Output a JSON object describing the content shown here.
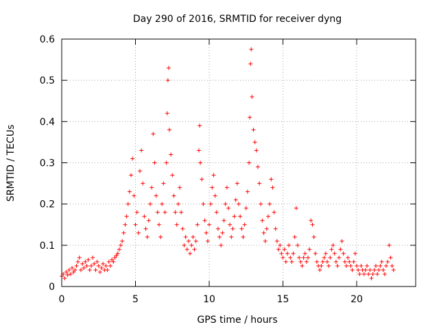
{
  "chart_data": {
    "type": "scatter",
    "title": "Day 290 of 2016, SRMTID for receiver dyng",
    "xlabel": "GPS time / hours",
    "ylabel": "SRMTID / TECUs",
    "xlim": [
      0,
      24
    ],
    "ylim": [
      0,
      0.6
    ],
    "xticks": [
      0,
      5,
      10,
      15,
      20
    ],
    "xtick_labels": [
      "0",
      "5",
      "10",
      "15",
      "20"
    ],
    "yticks": [
      0,
      0.1,
      0.2,
      0.3,
      0.4,
      0.5,
      0.6
    ],
    "ytick_labels": [
      "0",
      "0.1",
      "0.2",
      "0.3",
      "0.4",
      "0.5",
      "0.6"
    ],
    "grid": true,
    "marker": "+",
    "color": "#ff0000",
    "series": [
      {
        "name": "SRMTID",
        "points": [
          [
            0.0,
            0.025
          ],
          [
            0.1,
            0.03
          ],
          [
            0.2,
            0.02
          ],
          [
            0.3,
            0.035
          ],
          [
            0.4,
            0.028
          ],
          [
            0.5,
            0.04
          ],
          [
            0.6,
            0.03
          ],
          [
            0.7,
            0.045
          ],
          [
            0.8,
            0.035
          ],
          [
            0.9,
            0.04
          ],
          [
            1.0,
            0.05
          ],
          [
            1.1,
            0.06
          ],
          [
            1.2,
            0.07
          ],
          [
            1.3,
            0.04
          ],
          [
            1.4,
            0.055
          ],
          [
            1.5,
            0.045
          ],
          [
            1.6,
            0.06
          ],
          [
            1.7,
            0.05
          ],
          [
            1.8,
            0.065
          ],
          [
            1.9,
            0.04
          ],
          [
            2.0,
            0.05
          ],
          [
            2.1,
            0.07
          ],
          [
            2.2,
            0.055
          ],
          [
            2.3,
            0.04
          ],
          [
            2.4,
            0.06
          ],
          [
            2.5,
            0.05
          ],
          [
            2.6,
            0.035
          ],
          [
            2.7,
            0.045
          ],
          [
            2.8,
            0.055
          ],
          [
            2.9,
            0.04
          ],
          [
            3.0,
            0.05
          ],
          [
            3.1,
            0.04
          ],
          [
            3.2,
            0.06
          ],
          [
            3.3,
            0.05
          ],
          [
            3.4,
            0.065
          ],
          [
            3.5,
            0.06
          ],
          [
            3.6,
            0.07
          ],
          [
            3.7,
            0.075
          ],
          [
            3.8,
            0.08
          ],
          [
            3.9,
            0.09
          ],
          [
            4.0,
            0.1
          ],
          [
            4.1,
            0.11
          ],
          [
            4.2,
            0.13
          ],
          [
            4.3,
            0.15
          ],
          [
            4.4,
            0.17
          ],
          [
            4.5,
            0.2
          ],
          [
            4.6,
            0.23
          ],
          [
            4.7,
            0.27
          ],
          [
            4.8,
            0.31
          ],
          [
            4.9,
            0.22
          ],
          [
            5.0,
            0.15
          ],
          [
            5.1,
            0.18
          ],
          [
            5.2,
            0.13
          ],
          [
            5.3,
            0.28
          ],
          [
            5.4,
            0.33
          ],
          [
            5.5,
            0.25
          ],
          [
            5.6,
            0.17
          ],
          [
            5.7,
            0.14
          ],
          [
            5.8,
            0.12
          ],
          [
            5.9,
            0.16
          ],
          [
            6.0,
            0.2
          ],
          [
            6.1,
            0.24
          ],
          [
            6.2,
            0.37
          ],
          [
            6.3,
            0.3
          ],
          [
            6.4,
            0.22
          ],
          [
            6.5,
            0.18
          ],
          [
            6.6,
            0.15
          ],
          [
            6.7,
            0.12
          ],
          [
            6.8,
            0.2
          ],
          [
            6.9,
            0.25
          ],
          [
            7.0,
            0.18
          ],
          [
            7.1,
            0.3
          ],
          [
            7.15,
            0.42
          ],
          [
            7.2,
            0.5
          ],
          [
            7.25,
            0.53
          ],
          [
            7.3,
            0.38
          ],
          [
            7.4,
            0.32
          ],
          [
            7.5,
            0.27
          ],
          [
            7.6,
            0.22
          ],
          [
            7.7,
            0.18
          ],
          [
            7.8,
            0.15
          ],
          [
            7.9,
            0.2
          ],
          [
            8.0,
            0.24
          ],
          [
            8.1,
            0.18
          ],
          [
            8.2,
            0.14
          ],
          [
            8.3,
            0.1
          ],
          [
            8.4,
            0.12
          ],
          [
            8.5,
            0.09
          ],
          [
            8.6,
            0.11
          ],
          [
            8.7,
            0.08
          ],
          [
            8.8,
            0.1
          ],
          [
            8.9,
            0.12
          ],
          [
            9.0,
            0.09
          ],
          [
            9.1,
            0.11
          ],
          [
            9.2,
            0.15
          ],
          [
            9.3,
            0.33
          ],
          [
            9.35,
            0.39
          ],
          [
            9.4,
            0.3
          ],
          [
            9.5,
            0.26
          ],
          [
            9.6,
            0.2
          ],
          [
            9.7,
            0.16
          ],
          [
            9.8,
            0.13
          ],
          [
            9.9,
            0.11
          ],
          [
            10.0,
            0.15
          ],
          [
            10.1,
            0.2
          ],
          [
            10.2,
            0.24
          ],
          [
            10.3,
            0.27
          ],
          [
            10.4,
            0.22
          ],
          [
            10.5,
            0.18
          ],
          [
            10.6,
            0.14
          ],
          [
            10.7,
            0.12
          ],
          [
            10.8,
            0.1
          ],
          [
            10.9,
            0.13
          ],
          [
            11.0,
            0.16
          ],
          [
            11.1,
            0.2
          ],
          [
            11.2,
            0.24
          ],
          [
            11.3,
            0.19
          ],
          [
            11.4,
            0.15
          ],
          [
            11.5,
            0.12
          ],
          [
            11.6,
            0.14
          ],
          [
            11.7,
            0.17
          ],
          [
            11.8,
            0.21
          ],
          [
            11.9,
            0.25
          ],
          [
            12.0,
            0.2
          ],
          [
            12.1,
            0.17
          ],
          [
            12.2,
            0.14
          ],
          [
            12.3,
            0.12
          ],
          [
            12.4,
            0.15
          ],
          [
            12.5,
            0.19
          ],
          [
            12.6,
            0.23
          ],
          [
            12.7,
            0.3
          ],
          [
            12.75,
            0.41
          ],
          [
            12.8,
            0.54
          ],
          [
            12.85,
            0.575
          ],
          [
            12.9,
            0.46
          ],
          [
            13.0,
            0.38
          ],
          [
            13.1,
            0.35
          ],
          [
            13.2,
            0.33
          ],
          [
            13.3,
            0.29
          ],
          [
            13.4,
            0.25
          ],
          [
            13.5,
            0.2
          ],
          [
            13.6,
            0.16
          ],
          [
            13.7,
            0.13
          ],
          [
            13.8,
            0.11
          ],
          [
            13.9,
            0.14
          ],
          [
            14.0,
            0.17
          ],
          [
            14.1,
            0.2
          ],
          [
            14.2,
            0.26
          ],
          [
            14.3,
            0.24
          ],
          [
            14.4,
            0.18
          ],
          [
            14.5,
            0.14
          ],
          [
            14.6,
            0.11
          ],
          [
            14.7,
            0.09
          ],
          [
            14.8,
            0.1
          ],
          [
            14.9,
            0.08
          ],
          [
            15.0,
            0.07
          ],
          [
            15.1,
            0.09
          ],
          [
            15.2,
            0.06
          ],
          [
            15.3,
            0.08
          ],
          [
            15.4,
            0.1
          ],
          [
            15.5,
            0.07
          ],
          [
            15.6,
            0.06
          ],
          [
            15.7,
            0.08
          ],
          [
            15.8,
            0.12
          ],
          [
            15.9,
            0.19
          ],
          [
            16.0,
            0.1
          ],
          [
            16.1,
            0.07
          ],
          [
            16.2,
            0.06
          ],
          [
            16.3,
            0.05
          ],
          [
            16.4,
            0.07
          ],
          [
            16.5,
            0.08
          ],
          [
            16.6,
            0.06
          ],
          [
            16.7,
            0.07
          ],
          [
            16.8,
            0.09
          ],
          [
            16.9,
            0.16
          ],
          [
            17.0,
            0.15
          ],
          [
            17.1,
            0.12
          ],
          [
            17.2,
            0.08
          ],
          [
            17.3,
            0.06
          ],
          [
            17.4,
            0.05
          ],
          [
            17.5,
            0.04
          ],
          [
            17.6,
            0.05
          ],
          [
            17.7,
            0.06
          ],
          [
            17.8,
            0.07
          ],
          [
            17.9,
            0.08
          ],
          [
            18.0,
            0.06
          ],
          [
            18.1,
            0.05
          ],
          [
            18.2,
            0.07
          ],
          [
            18.3,
            0.09
          ],
          [
            18.4,
            0.1
          ],
          [
            18.5,
            0.08
          ],
          [
            18.6,
            0.06
          ],
          [
            18.7,
            0.05
          ],
          [
            18.8,
            0.07
          ],
          [
            18.9,
            0.09
          ],
          [
            19.0,
            0.11
          ],
          [
            19.1,
            0.08
          ],
          [
            19.2,
            0.06
          ],
          [
            19.3,
            0.05
          ],
          [
            19.4,
            0.07
          ],
          [
            19.5,
            0.06
          ],
          [
            19.6,
            0.05
          ],
          [
            19.7,
            0.04
          ],
          [
            19.8,
            0.06
          ],
          [
            19.9,
            0.08
          ],
          [
            20.0,
            0.05
          ],
          [
            20.1,
            0.04
          ],
          [
            20.2,
            0.03
          ],
          [
            20.3,
            0.05
          ],
          [
            20.4,
            0.04
          ],
          [
            20.5,
            0.03
          ],
          [
            20.6,
            0.04
          ],
          [
            20.7,
            0.05
          ],
          [
            20.8,
            0.03
          ],
          [
            20.9,
            0.04
          ],
          [
            21.0,
            0.02
          ],
          [
            21.1,
            0.03
          ],
          [
            21.2,
            0.04
          ],
          [
            21.3,
            0.05
          ],
          [
            21.4,
            0.03
          ],
          [
            21.5,
            0.04
          ],
          [
            21.6,
            0.05
          ],
          [
            21.7,
            0.06
          ],
          [
            21.8,
            0.04
          ],
          [
            21.9,
            0.03
          ],
          [
            22.0,
            0.05
          ],
          [
            22.1,
            0.06
          ],
          [
            22.2,
            0.1
          ],
          [
            22.3,
            0.07
          ],
          [
            22.4,
            0.05
          ],
          [
            22.5,
            0.04
          ]
        ]
      }
    ]
  }
}
